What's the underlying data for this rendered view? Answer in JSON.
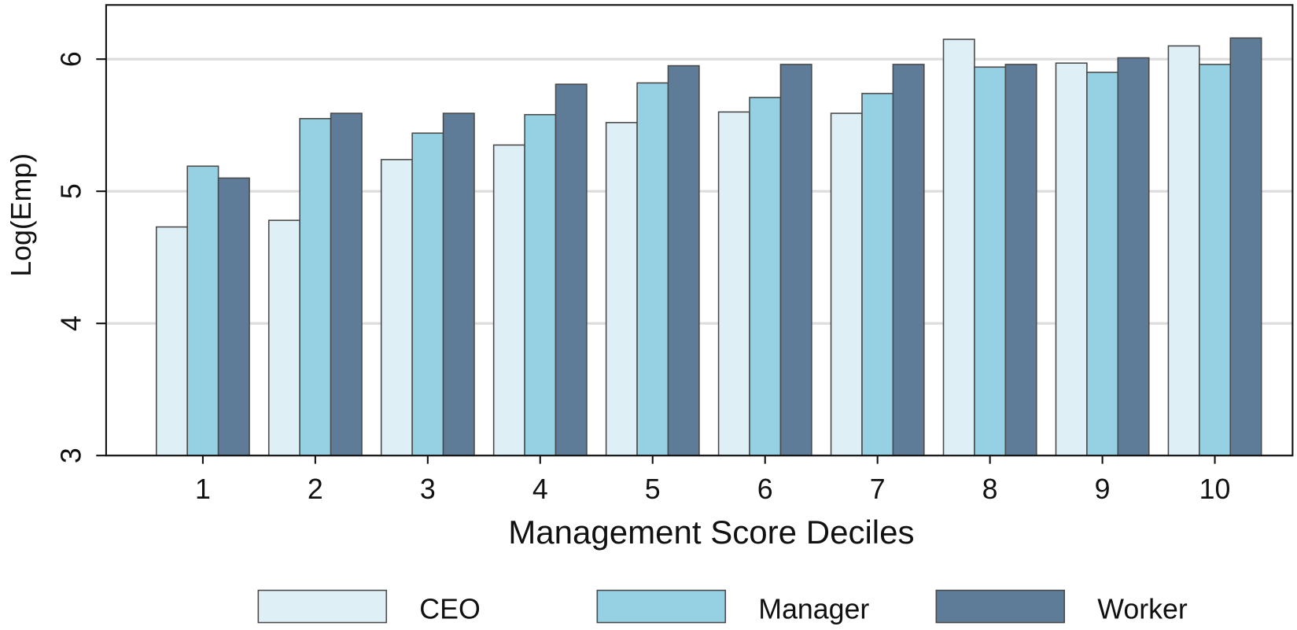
{
  "chart_data": {
    "type": "bar",
    "x_label": "Management Score Deciles",
    "y_label": "Log(Emp)",
    "categories": [
      "1",
      "2",
      "3",
      "4",
      "5",
      "6",
      "7",
      "8",
      "9",
      "10"
    ],
    "series": [
      {
        "name": "CEO",
        "color": "#deeff6",
        "values": [
          4.73,
          4.78,
          5.24,
          5.35,
          5.52,
          5.6,
          5.59,
          6.15,
          5.97,
          6.1
        ]
      },
      {
        "name": "Manager",
        "color": "#96d0e3",
        "values": [
          5.19,
          5.55,
          5.44,
          5.58,
          5.82,
          5.71,
          5.74,
          5.94,
          5.9,
          5.96
        ]
      },
      {
        "name": "Worker",
        "color": "#5e7c98",
        "values": [
          5.1,
          5.59,
          5.59,
          5.81,
          5.95,
          5.96,
          5.96,
          5.96,
          6.01,
          6.16
        ]
      }
    ],
    "ylim": [
      3,
      6.41
    ],
    "yticks": [
      3,
      4,
      5,
      6
    ],
    "grid": true,
    "legend": "bottom"
  }
}
